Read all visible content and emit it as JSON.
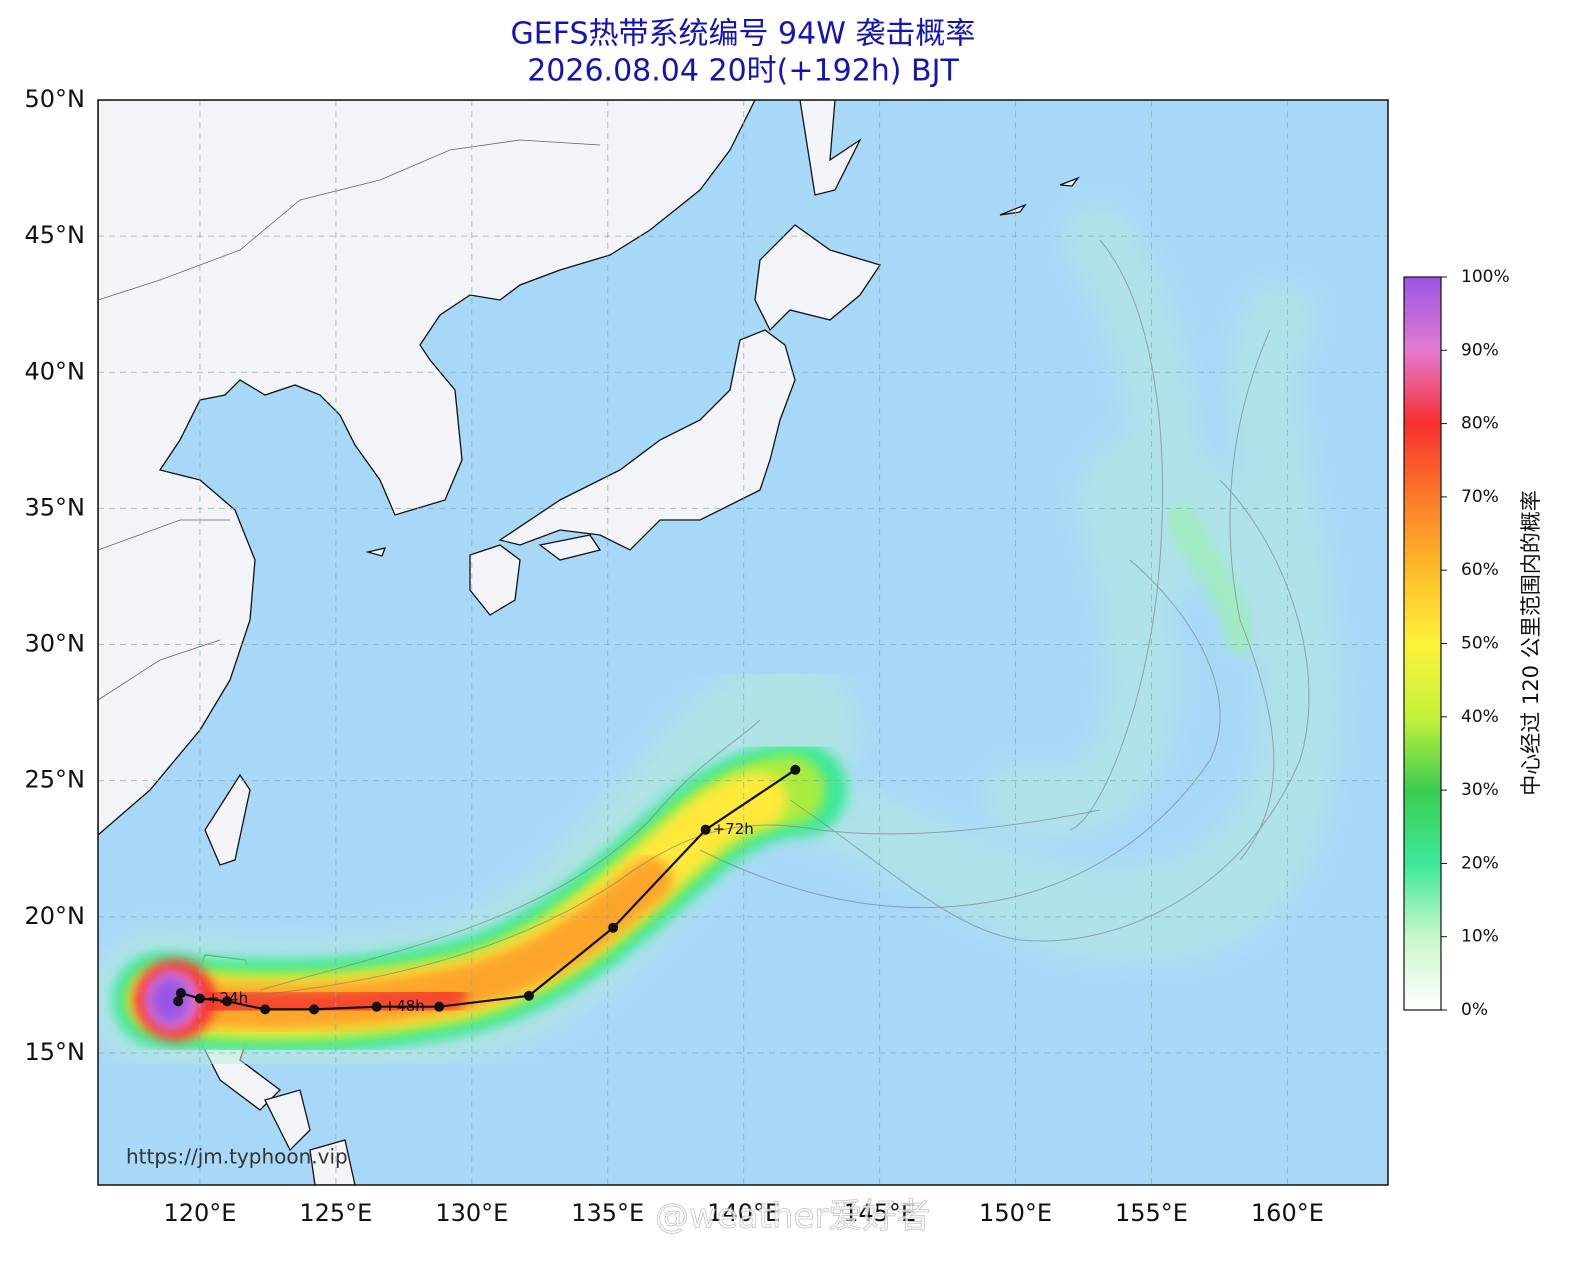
{
  "map": {
    "title": "GEFS热带系统编号 94W 袭击概率",
    "subtitle": "2026.08.04 20时(+192h) BJT",
    "lonlim": [
      116.25,
      163.7
    ],
    "latlim": [
      10.15,
      50
    ],
    "grid": true,
    "lon_ticks": [
      {
        "value": 120,
        "label": "120°E"
      },
      {
        "value": 125,
        "label": "125°E"
      },
      {
        "value": 130,
        "label": "130°E"
      },
      {
        "value": 135,
        "label": "135°E"
      },
      {
        "value": 140,
        "label": "140°E"
      },
      {
        "value": 145,
        "label": "145°E"
      },
      {
        "value": 150,
        "label": "150°E"
      },
      {
        "value": 155,
        "label": "155°E"
      },
      {
        "value": 160,
        "label": "160°E"
      }
    ],
    "lat_ticks": [
      {
        "value": 15,
        "label": "15°N"
      },
      {
        "value": 20,
        "label": "20°N"
      },
      {
        "value": 25,
        "label": "25°N"
      },
      {
        "value": 30,
        "label": "30°N"
      },
      {
        "value": 35,
        "label": "35°N"
      },
      {
        "value": 40,
        "label": "40°N"
      },
      {
        "value": 45,
        "label": "45°N"
      },
      {
        "value": 50,
        "label": "50°N"
      }
    ],
    "track": {
      "lon": [
        119.2,
        119.3,
        120.0,
        121.0,
        122.4,
        124.2,
        126.5,
        128.8,
        132.1,
        135.2,
        138.6,
        141.9
      ],
      "lat": [
        16.9,
        17.2,
        17.0,
        16.9,
        16.6,
        16.6,
        16.7,
        16.7,
        17.1,
        19.6,
        23.2,
        25.4
      ],
      "labels": [
        null,
        null,
        "+24h",
        null,
        null,
        null,
        "+48h",
        null,
        null,
        null,
        "+72h",
        null
      ]
    },
    "colorbar": {
      "label": "中心经过 120 公里范围内的概率",
      "lim": [
        0,
        100
      ],
      "ticks": [
        {
          "value": 0,
          "label": "0%"
        },
        {
          "value": 10,
          "label": "10%"
        },
        {
          "value": 20,
          "label": "20%"
        },
        {
          "value": 30,
          "label": "30%"
        },
        {
          "value": 40,
          "label": "40%"
        },
        {
          "value": 50,
          "label": "50%"
        },
        {
          "value": 60,
          "label": "60%"
        },
        {
          "value": 70,
          "label": "70%"
        },
        {
          "value": 80,
          "label": "80%"
        },
        {
          "value": 90,
          "label": "90%"
        },
        {
          "value": 100,
          "label": "100%"
        }
      ]
    },
    "credit": "https://jm.typhoon.vip",
    "watermark": "@weather爱好者"
  }
}
